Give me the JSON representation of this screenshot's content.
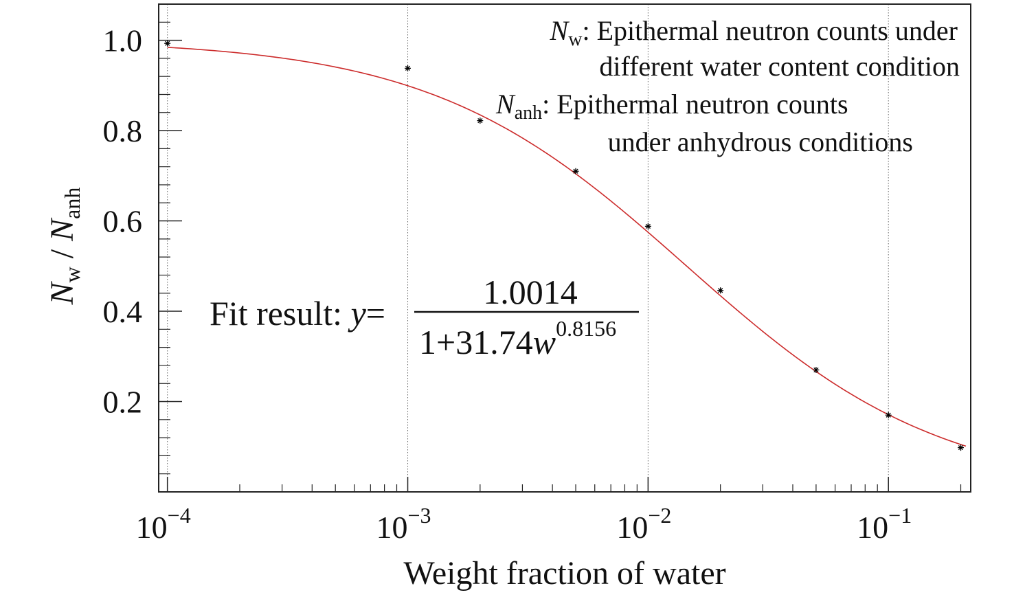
{
  "chart_data": {
    "type": "scatter",
    "x_scale": "log",
    "xlim": [
      9.2e-05,
      0.22
    ],
    "ylim": [
      0.0,
      1.08
    ],
    "grid": "vertical dotted at decades",
    "xlabel": "Weight fraction of water",
    "ylabel": {
      "main_1": "N",
      "sub_1": "w",
      "sep": " / ",
      "main_2": "N",
      "sub_2": "anh"
    },
    "x_ticks": [
      {
        "value": 0.0001,
        "base": "10",
        "exp": "−4"
      },
      {
        "value": 0.001,
        "base": "10",
        "exp": "−3"
      },
      {
        "value": 0.01,
        "base": "10",
        "exp": "−2"
      },
      {
        "value": 0.1,
        "base": "10",
        "exp": "−1"
      }
    ],
    "y_ticks": [
      {
        "value": 0.2,
        "label": "0.2"
      },
      {
        "value": 0.4,
        "label": "0.4"
      },
      {
        "value": 0.6,
        "label": "0.6"
      },
      {
        "value": 0.8,
        "label": "0.8"
      },
      {
        "value": 1.0,
        "label": "1.0"
      }
    ],
    "series": [
      {
        "kind": "points",
        "marker": "*",
        "color": "#000000",
        "x": [
          0.0001,
          0.001,
          0.002,
          0.005,
          0.01,
          0.02,
          0.05,
          0.1,
          0.2
        ],
        "y": [
          0.993,
          0.938,
          0.822,
          0.71,
          0.588,
          0.446,
          0.27,
          0.17,
          0.098
        ]
      },
      {
        "kind": "fit",
        "color": "#cc2b2b",
        "formula": {
          "a": 1.0014,
          "b": 31.74,
          "c": 0.8156
        }
      }
    ],
    "legend": {
      "placement": "top-right",
      "entries": [
        {
          "symbol": "N",
          "sub": "w",
          "text_line1": ": Epithermal neutron counts under",
          "text_line2": "different water content condition"
        },
        {
          "symbol": "N",
          "sub": "anh",
          "text_line1": ": Epithermal neutron counts",
          "text_line2": "under anhydrous conditions"
        }
      ]
    },
    "fit_annotation": {
      "prefix": "Fit result: ",
      "y_var": "y",
      "equals": "=",
      "numerator": "1.0014",
      "denominator": "1+31.74",
      "w_var": "w",
      "exponent": "0.8156"
    }
  }
}
